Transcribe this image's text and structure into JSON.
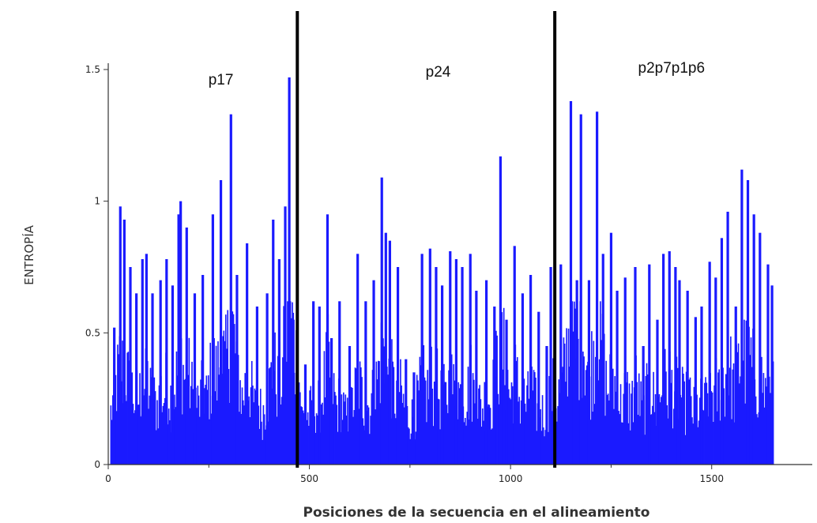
{
  "chart_data": {
    "type": "bar",
    "xlabel": "Posiciones de la secuencia en el alineamiento",
    "ylabel": "ENTROPÍA",
    "xlim": [
      0,
      1750
    ],
    "ylim": [
      0,
      1.5
    ],
    "x_ticks": [
      {
        "value": 0,
        "label": "0"
      },
      {
        "value": 500,
        "label": "500"
      },
      {
        "value": 1000,
        "label": "1000"
      },
      {
        "value": 1500,
        "label": "1500"
      }
    ],
    "y_ticks": [
      {
        "value": 0,
        "label": "0"
      },
      {
        "value": 0.5,
        "label": "0.5"
      },
      {
        "value": 1,
        "label": "1"
      },
      {
        "value": 1.5,
        "label": "1.5"
      }
    ],
    "bar_color": "#1a1aff",
    "region_boundaries": [
      470,
      1110
    ],
    "regions": [
      {
        "label": "p17",
        "center": 280
      },
      {
        "label": "p24",
        "center": 820
      },
      {
        "label": "p2p7p1p6",
        "center": 1400
      }
    ],
    "peaks": [
      {
        "x": 15,
        "y": 0.52
      },
      {
        "x": 30,
        "y": 0.98
      },
      {
        "x": 40,
        "y": 0.93
      },
      {
        "x": 55,
        "y": 0.75
      },
      {
        "x": 70,
        "y": 0.65
      },
      {
        "x": 85,
        "y": 0.78
      },
      {
        "x": 95,
        "y": 0.8
      },
      {
        "x": 110,
        "y": 0.65
      },
      {
        "x": 130,
        "y": 0.7
      },
      {
        "x": 145,
        "y": 0.78
      },
      {
        "x": 160,
        "y": 0.68
      },
      {
        "x": 175,
        "y": 0.95
      },
      {
        "x": 180,
        "y": 1.0
      },
      {
        "x": 195,
        "y": 0.9
      },
      {
        "x": 215,
        "y": 0.65
      },
      {
        "x": 235,
        "y": 0.72
      },
      {
        "x": 260,
        "y": 0.95
      },
      {
        "x": 280,
        "y": 1.08
      },
      {
        "x": 305,
        "y": 1.33
      },
      {
        "x": 320,
        "y": 0.72
      },
      {
        "x": 345,
        "y": 0.84
      },
      {
        "x": 370,
        "y": 0.6
      },
      {
        "x": 395,
        "y": 0.65
      },
      {
        "x": 410,
        "y": 0.93
      },
      {
        "x": 425,
        "y": 0.78
      },
      {
        "x": 440,
        "y": 0.98
      },
      {
        "x": 450,
        "y": 1.47
      },
      {
        "x": 460,
        "y": 0.55
      },
      {
        "x": 490,
        "y": 0.38
      },
      {
        "x": 510,
        "y": 0.62
      },
      {
        "x": 525,
        "y": 0.6
      },
      {
        "x": 545,
        "y": 0.95
      },
      {
        "x": 555,
        "y": 0.48
      },
      {
        "x": 575,
        "y": 0.62
      },
      {
        "x": 600,
        "y": 0.45
      },
      {
        "x": 620,
        "y": 0.8
      },
      {
        "x": 640,
        "y": 0.62
      },
      {
        "x": 660,
        "y": 0.7
      },
      {
        "x": 680,
        "y": 1.09
      },
      {
        "x": 690,
        "y": 0.88
      },
      {
        "x": 700,
        "y": 0.85
      },
      {
        "x": 720,
        "y": 0.75
      },
      {
        "x": 740,
        "y": 0.4
      },
      {
        "x": 760,
        "y": 0.35
      },
      {
        "x": 780,
        "y": 0.8
      },
      {
        "x": 800,
        "y": 0.82
      },
      {
        "x": 815,
        "y": 0.75
      },
      {
        "x": 830,
        "y": 0.68
      },
      {
        "x": 850,
        "y": 0.81
      },
      {
        "x": 865,
        "y": 0.78
      },
      {
        "x": 880,
        "y": 0.75
      },
      {
        "x": 900,
        "y": 0.8
      },
      {
        "x": 915,
        "y": 0.66
      },
      {
        "x": 940,
        "y": 0.7
      },
      {
        "x": 960,
        "y": 0.6
      },
      {
        "x": 975,
        "y": 1.17
      },
      {
        "x": 990,
        "y": 0.55
      },
      {
        "x": 1010,
        "y": 0.83
      },
      {
        "x": 1030,
        "y": 0.65
      },
      {
        "x": 1050,
        "y": 0.72
      },
      {
        "x": 1070,
        "y": 0.58
      },
      {
        "x": 1090,
        "y": 0.45
      },
      {
        "x": 1100,
        "y": 0.75
      },
      {
        "x": 1125,
        "y": 0.76
      },
      {
        "x": 1150,
        "y": 1.38
      },
      {
        "x": 1165,
        "y": 0.7
      },
      {
        "x": 1175,
        "y": 1.33
      },
      {
        "x": 1195,
        "y": 0.7
      },
      {
        "x": 1215,
        "y": 1.34
      },
      {
        "x": 1230,
        "y": 0.8
      },
      {
        "x": 1250,
        "y": 0.88
      },
      {
        "x": 1265,
        "y": 0.66
      },
      {
        "x": 1285,
        "y": 0.71
      },
      {
        "x": 1310,
        "y": 0.75
      },
      {
        "x": 1330,
        "y": 0.45
      },
      {
        "x": 1345,
        "y": 0.76
      },
      {
        "x": 1365,
        "y": 0.55
      },
      {
        "x": 1380,
        "y": 0.8
      },
      {
        "x": 1395,
        "y": 0.81
      },
      {
        "x": 1410,
        "y": 0.75
      },
      {
        "x": 1420,
        "y": 0.7
      },
      {
        "x": 1440,
        "y": 0.66
      },
      {
        "x": 1460,
        "y": 0.56
      },
      {
        "x": 1475,
        "y": 0.6
      },
      {
        "x": 1495,
        "y": 0.77
      },
      {
        "x": 1510,
        "y": 0.71
      },
      {
        "x": 1525,
        "y": 0.86
      },
      {
        "x": 1540,
        "y": 0.96
      },
      {
        "x": 1560,
        "y": 0.6
      },
      {
        "x": 1575,
        "y": 1.12
      },
      {
        "x": 1590,
        "y": 1.08
      },
      {
        "x": 1605,
        "y": 0.95
      },
      {
        "x": 1620,
        "y": 0.88
      },
      {
        "x": 1640,
        "y": 0.76
      },
      {
        "x": 1650,
        "y": 0.68
      }
    ]
  }
}
